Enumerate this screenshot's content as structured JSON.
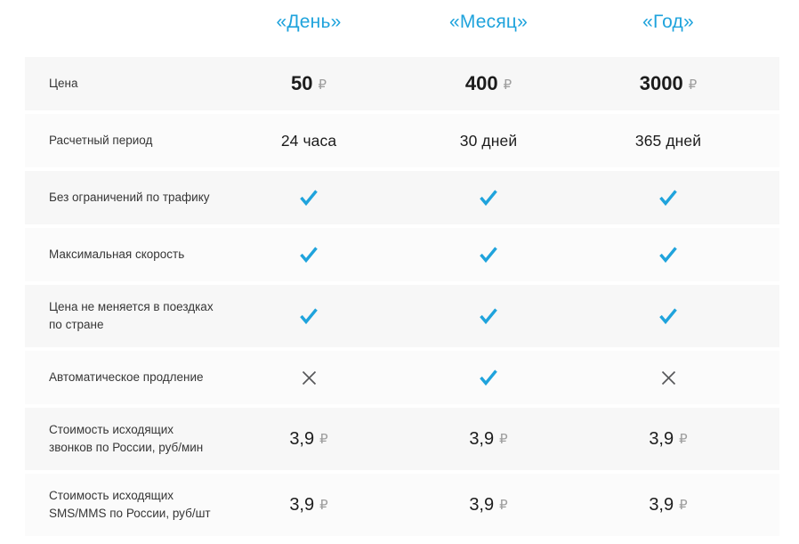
{
  "table": {
    "columns": [
      "«День»",
      "«Месяц»",
      "«Год»"
    ],
    "currency_symbol": "₽",
    "rows": [
      {
        "label": "Цена",
        "type": "price",
        "size": "large",
        "values": [
          "50",
          "400",
          "3000"
        ]
      },
      {
        "label": "Расчетный период",
        "type": "text",
        "values": [
          "24 часа",
          "30 дней",
          "365 дней"
        ]
      },
      {
        "label": "Без ограничений по трафику",
        "type": "icons",
        "values": [
          "check",
          "check",
          "check"
        ]
      },
      {
        "label": "Максимальная скорость",
        "type": "icons",
        "values": [
          "check",
          "check",
          "check"
        ]
      },
      {
        "label": "Цена не меняется в поездках по стране",
        "type": "icons",
        "values": [
          "check",
          "check",
          "check"
        ]
      },
      {
        "label": "Автоматическое продление",
        "type": "icons",
        "values": [
          "cross",
          "check",
          "cross"
        ]
      },
      {
        "label": "Стоимость исходящих звонков по России, руб/мин",
        "type": "price",
        "size": "small",
        "values": [
          "3,9",
          "3,9",
          "3,9"
        ]
      },
      {
        "label": "Стоимость исходящих SMS/MMS по России, руб/шт",
        "type": "price",
        "size": "small",
        "values": [
          "3,9",
          "3,9",
          "3,9"
        ]
      }
    ]
  },
  "icons": {
    "check": "check-icon",
    "cross": "cross-icon"
  },
  "colors": {
    "accent": "#1fa3dc",
    "cross_gray": "#57585a",
    "row_odd_bg": "#f7f7f7",
    "row_even_bg": "#fbfbfb",
    "ruble_gray": "#9e9e9e"
  }
}
